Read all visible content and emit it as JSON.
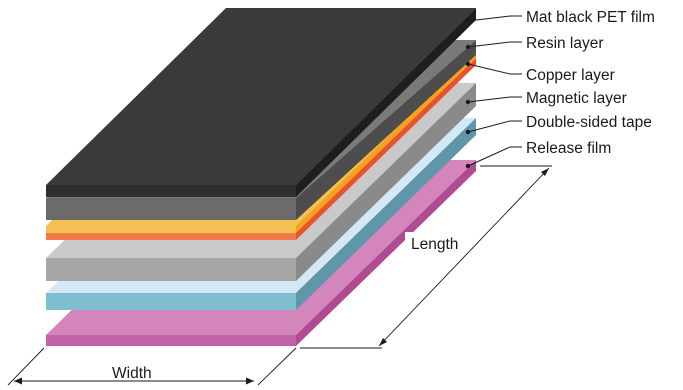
{
  "diagram": {
    "labels": {
      "mat_black_pet_film": "Mat black PET film",
      "resin_layer": "Resin layer",
      "copper_layer": "Copper layer",
      "magnetic_layer": "Magnetic layer",
      "double_sided_tape": "Double-sided tape",
      "release_film": "Release film"
    },
    "dimensions": {
      "length": "Length",
      "width": "Width"
    }
  }
}
